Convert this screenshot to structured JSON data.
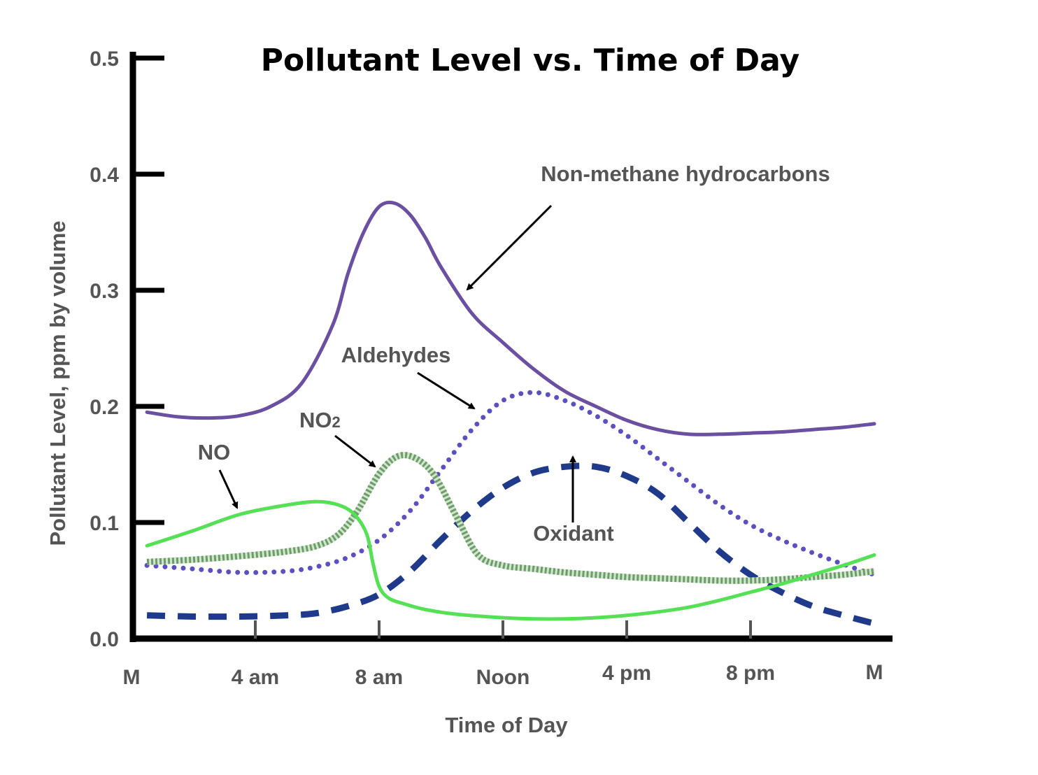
{
  "chart_data": {
    "type": "line",
    "title": "Pollutant Level vs. Time of Day",
    "xlabel": "Time of Day",
    "ylabel": "Pollutant Level, ppm by volume",
    "x_ticks": [
      "M",
      "4 am",
      "8 am",
      "Noon",
      "4 pm",
      "8 pm",
      "M"
    ],
    "x_tick_hours": [
      0,
      4,
      8,
      12,
      16,
      20,
      24
    ],
    "xlim": [
      0,
      24
    ],
    "y_ticks": [
      "0.0",
      "0.1",
      "0.2",
      "0.3",
      "0.4",
      "0.5"
    ],
    "y_tick_values": [
      0,
      0.1,
      0.2,
      0.3,
      0.4,
      0.5
    ],
    "ylim": [
      0,
      0.5
    ],
    "grid": false,
    "series": [
      {
        "name": "Non-methane hydrocarbons",
        "label_main": "Non-methane hydrocarbons",
        "style": "solid",
        "color": "#6b4fa0",
        "x": [
          0.5,
          1.5,
          2.5,
          3.5,
          4.5,
          5.5,
          6.5,
          7.0,
          7.5,
          8.0,
          8.5,
          9.0,
          9.5,
          10.0,
          11.0,
          12.0,
          13.0,
          14.0,
          15.0,
          16.0,
          17.0,
          18.0,
          19.0,
          20.0,
          21.0,
          22.0,
          23.0,
          24.0
        ],
        "y": [
          0.195,
          0.191,
          0.19,
          0.192,
          0.2,
          0.22,
          0.27,
          0.315,
          0.35,
          0.372,
          0.375,
          0.365,
          0.345,
          0.32,
          0.28,
          0.255,
          0.232,
          0.213,
          0.2,
          0.188,
          0.18,
          0.176,
          0.176,
          0.177,
          0.178,
          0.18,
          0.182,
          0.185
        ]
      },
      {
        "name": "Aldehydes",
        "label_main": "Aldehydes",
        "style": "dotted",
        "color": "#5a50c0",
        "x": [
          0.5,
          2,
          3.5,
          5,
          6,
          7,
          8,
          9,
          10,
          11,
          12,
          13,
          14,
          15,
          16,
          17,
          18,
          19,
          20,
          21,
          22,
          23,
          24
        ],
        "y": [
          0.063,
          0.06,
          0.057,
          0.058,
          0.062,
          0.07,
          0.085,
          0.11,
          0.145,
          0.18,
          0.205,
          0.212,
          0.205,
          0.192,
          0.175,
          0.155,
          0.135,
          0.115,
          0.098,
          0.085,
          0.074,
          0.064,
          0.055
        ]
      },
      {
        "name": "NO2",
        "label_main": "NO",
        "label_sub": "2",
        "style": "checkered",
        "color": "#6f9a6f",
        "x": [
          0.5,
          2,
          3.5,
          5,
          6,
          6.7,
          7.3,
          8,
          8.6,
          9.2,
          9.8,
          10.5,
          11.2,
          12,
          13,
          14,
          15,
          16,
          17,
          18,
          19,
          20,
          21,
          22,
          23,
          24
        ],
        "y": [
          0.066,
          0.068,
          0.071,
          0.075,
          0.08,
          0.09,
          0.11,
          0.142,
          0.157,
          0.155,
          0.14,
          0.105,
          0.072,
          0.063,
          0.06,
          0.057,
          0.055,
          0.053,
          0.052,
          0.051,
          0.05,
          0.05,
          0.051,
          0.053,
          0.055,
          0.058
        ]
      },
      {
        "name": "NO",
        "label_main": "NO",
        "style": "solid",
        "color": "#55e055",
        "x": [
          0.5,
          2,
          3.5,
          5,
          6,
          6.7,
          7.2,
          7.6,
          7.8,
          8.0,
          8.3,
          8.8,
          9.5,
          10.5,
          12,
          13,
          14,
          15,
          16,
          17,
          18,
          19,
          20,
          21,
          22,
          23,
          24
        ],
        "y": [
          0.08,
          0.093,
          0.107,
          0.115,
          0.118,
          0.115,
          0.107,
          0.09,
          0.065,
          0.045,
          0.035,
          0.03,
          0.025,
          0.021,
          0.018,
          0.017,
          0.017,
          0.018,
          0.02,
          0.023,
          0.027,
          0.033,
          0.04,
          0.047,
          0.055,
          0.063,
          0.072
        ]
      },
      {
        "name": "Oxidant",
        "label_main": "Oxidant",
        "style": "dashed",
        "color": "#1f3a8a",
        "x": [
          0.5,
          2,
          3.5,
          5,
          6,
          7,
          8,
          9,
          10,
          11,
          12,
          13,
          14,
          15,
          16,
          17,
          18,
          19,
          20,
          21,
          22,
          23,
          24
        ],
        "y": [
          0.02,
          0.019,
          0.019,
          0.02,
          0.022,
          0.028,
          0.038,
          0.058,
          0.085,
          0.11,
          0.13,
          0.143,
          0.148,
          0.148,
          0.14,
          0.125,
          0.1,
          0.075,
          0.055,
          0.04,
          0.028,
          0.02,
          0.013
        ]
      }
    ]
  }
}
